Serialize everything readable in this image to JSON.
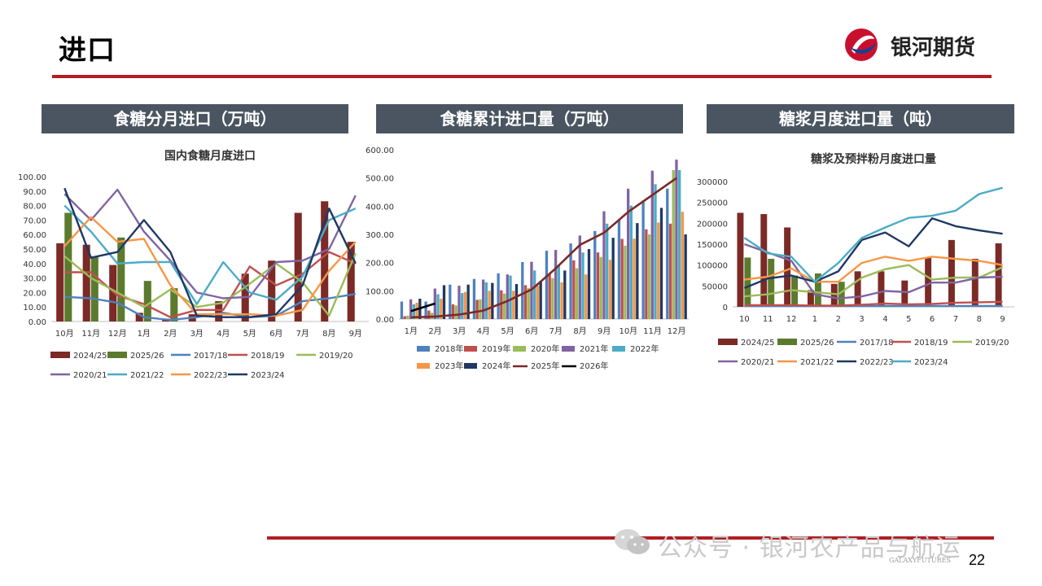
{
  "page": {
    "title": "进口",
    "logo_text": "银河期货",
    "page_number": "22",
    "watermark": "公众号 · 银河农产品与航运",
    "footer_brand": "GALAXYFUTURES"
  },
  "panels": [
    {
      "header": "食糖分月进口（万吨）"
    },
    {
      "header": "食糖累计进口量（万吨）"
    },
    {
      "header": "糖浆月度进口量（吨）"
    }
  ],
  "chart_data": [
    {
      "type": "bar+line",
      "title": "国内食糖月度进口",
      "categories": [
        "10月",
        "11月",
        "12月",
        "1月",
        "2月",
        "3月",
        "4月",
        "5月",
        "6月",
        "7月",
        "8月",
        "9月"
      ],
      "ylim": [
        0,
        100
      ],
      "yticks": [
        "0.00",
        "10.00",
        "20.00",
        "30.00",
        "40.00",
        "50.00",
        "60.00",
        "70.00",
        "80.00",
        "90.00",
        "100.00"
      ],
      "bar_series": [
        {
          "name": "2024/25",
          "color": "#7b2a26",
          "values": [
            54,
            53,
            39,
            6,
            2,
            5,
            14,
            33,
            42,
            75,
            83,
            55
          ]
        },
        {
          "name": "2025/26",
          "color": "#5b7a2e",
          "values": [
            75,
            45,
            58,
            28,
            23,
            null,
            null,
            null,
            null,
            null,
            null,
            null
          ]
        }
      ],
      "line_series": [
        {
          "name": "2017/18",
          "color": "#4f81bd",
          "values": [
            17,
            16,
            13,
            3,
            1,
            3,
            6,
            3,
            4,
            14,
            16,
            19
          ]
        },
        {
          "name": "2018/19",
          "color": "#c0504d",
          "values": [
            34,
            34,
            18,
            12,
            3,
            8,
            8,
            38,
            25,
            33,
            48,
            40
          ]
        },
        {
          "name": "2019/20",
          "color": "#9bbb59",
          "values": [
            45,
            30,
            20,
            10,
            22,
            10,
            13,
            26,
            40,
            27,
            4,
            47
          ]
        },
        {
          "name": "2020/21",
          "color": "#8064a2",
          "values": [
            88,
            70,
            91,
            62,
            42,
            20,
            16,
            17,
            41,
            42,
            50,
            87
          ]
        },
        {
          "name": "2021/22",
          "color": "#4bacc6",
          "values": [
            80,
            62,
            40,
            41,
            41,
            12,
            41,
            20,
            15,
            31,
            70,
            78
          ]
        },
        {
          "name": "2022/23",
          "color": "#f79646",
          "values": [
            52,
            72,
            55,
            57,
            25,
            5,
            5,
            5,
            4,
            8,
            35,
            55
          ]
        },
        {
          "name": "2023/24",
          "color": "#1f3864",
          "values": [
            92,
            44,
            48,
            70,
            48,
            4,
            3,
            3,
            5,
            25,
            78,
            40
          ]
        }
      ]
    },
    {
      "type": "bar+line",
      "title": "",
      "categories": [
        "1月",
        "2月",
        "3月",
        "4月",
        "5月",
        "6月",
        "7月",
        "8月",
        "9月",
        "10月",
        "11月",
        "12月"
      ],
      "ylim": [
        0,
        600
      ],
      "yticks": [
        "0.00",
        "100.00",
        "200.00",
        "300.00",
        "400.00",
        "500.00",
        "600.00"
      ],
      "bar_series": [
        {
          "name": "2018年",
          "color": "#4f81bd",
          "values": [
            62,
            62,
            122,
            142,
            162,
            202,
            242,
            268,
            312,
            352,
            420,
            462
          ]
        },
        {
          "name": "2019年",
          "color": "#c0504d",
          "values": [
            10,
            30,
            52,
            68,
            102,
            120,
            158,
            208,
            236,
            284,
            318,
            338
          ]
        },
        {
          "name": "2020年",
          "color": "#9bbb59",
          "values": [
            12,
            22,
            48,
            70,
            90,
            110,
            145,
            180,
            220,
            260,
            300,
            528
          ]
        },
        {
          "name": "2021年",
          "color": "#8064a2",
          "values": [
            70,
            108,
            118,
            140,
            158,
            203,
            245,
            296,
            382,
            462,
            526,
            565
          ]
        },
        {
          "name": "2022年",
          "color": "#4bacc6",
          "values": [
            52,
            88,
            92,
            130,
            154,
            172,
            190,
            236,
            338,
            402,
            478,
            528
          ]
        },
        {
          "name": "2023年",
          "color": "#f79646",
          "values": [
            58,
            72,
            96,
            100,
            100,
            118,
            130,
            158,
            210,
            285,
            342,
            380
          ]
        },
        {
          "name": "2024年",
          "color": "#1f3864",
          "values": [
            72,
            120,
            122,
            128,
            124,
            135,
            172,
            248,
            288,
            340,
            394,
            300
          ]
        }
      ],
      "line_series": [
        {
          "name": "2025年",
          "color": "#7b2a26",
          "values": [
            6,
            9,
            16,
            30,
            64,
            105,
            180,
            263,
            306,
            380,
            440,
            500
          ]
        },
        {
          "name": "2026年",
          "color": "#000000",
          "values": [
            28,
            55,
            null,
            null,
            null,
            null,
            null,
            null,
            null,
            null,
            null,
            null
          ]
        }
      ]
    },
    {
      "type": "bar+line",
      "title": "糖浆及预拌粉月度进口量",
      "categories": [
        "10",
        "11",
        "12",
        "1",
        "2",
        "3",
        "4",
        "5",
        "6",
        "7",
        "8",
        "9"
      ],
      "ylim": [
        0,
        300000
      ],
      "yticks": [
        "0",
        "50000",
        "100000",
        "150000",
        "200000",
        "250000",
        "300000"
      ],
      "bar_series": [
        {
          "name": "2024/25",
          "color": "#7b2a26",
          "values": [
            225000,
            222000,
            190000,
            40000,
            55000,
            85000,
            85000,
            63000,
            118000,
            160000,
            115000,
            152000
          ]
        },
        {
          "name": "2025/26",
          "color": "#5b7a2e",
          "values": [
            118000,
            115000,
            75000,
            80000,
            60000,
            null,
            null,
            null,
            null,
            null,
            null,
            null
          ]
        }
      ],
      "line_series": [
        {
          "name": "2017/18",
          "color": "#4f81bd",
          "values": [
            2000,
            2000,
            2000,
            2000,
            2000,
            2000,
            2000,
            2000,
            2000,
            2000,
            2000,
            2000
          ]
        },
        {
          "name": "2018/19",
          "color": "#c0504d",
          "values": [
            4000,
            4000,
            4000,
            3000,
            3000,
            5000,
            8000,
            6000,
            7000,
            10000,
            11000,
            12000
          ]
        },
        {
          "name": "2019/20",
          "color": "#9bbb59",
          "values": [
            25000,
            30000,
            40000,
            35000,
            30000,
            70000,
            90000,
            100000,
            65000,
            70000,
            70000,
            95000
          ]
        },
        {
          "name": "2020/21",
          "color": "#8064a2",
          "values": [
            150000,
            130000,
            110000,
            30000,
            20000,
            25000,
            38000,
            35000,
            58000,
            58000,
            70000,
            72000
          ]
        },
        {
          "name": "2021/22",
          "color": "#f79646",
          "values": [
            65000,
            72000,
            92000,
            60000,
            60000,
            105000,
            120000,
            110000,
            120000,
            115000,
            110000,
            100000
          ]
        },
        {
          "name": "2022/23",
          "color": "#1f3864",
          "values": [
            45000,
            68000,
            75000,
            60000,
            85000,
            160000,
            178000,
            145000,
            212000,
            193000,
            183000,
            175000
          ]
        },
        {
          "name": "2023/24",
          "color": "#4bacc6",
          "values": [
            165000,
            128000,
            120000,
            60000,
            105000,
            165000,
            190000,
            213000,
            218000,
            230000,
            270000,
            285000
          ]
        }
      ]
    }
  ]
}
